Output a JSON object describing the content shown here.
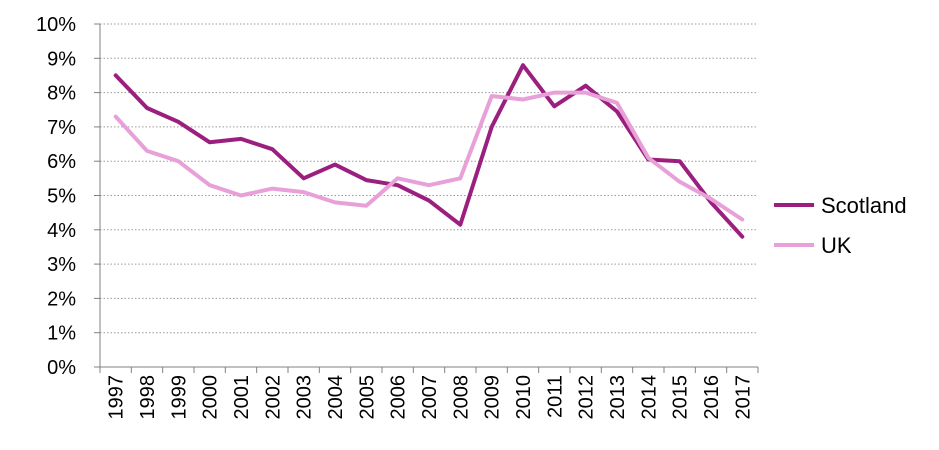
{
  "chart_data": {
    "type": "line",
    "title": "",
    "xlabel": "",
    "ylabel": "",
    "x": [
      "1997",
      "1998",
      "1999",
      "2000",
      "2001",
      "2002",
      "2003",
      "2004",
      "2005",
      "2006",
      "2007",
      "2008",
      "2009",
      "2010",
      "2011",
      "2012",
      "2013",
      "2014",
      "2015",
      "2016",
      "2017"
    ],
    "ylim": [
      0,
      10
    ],
    "yticks": [
      0,
      1,
      2,
      3,
      4,
      5,
      6,
      7,
      8,
      9,
      10
    ],
    "ytick_labels": [
      "0%",
      "1%",
      "2%",
      "3%",
      "4%",
      "5%",
      "6%",
      "7%",
      "8%",
      "9%",
      "10%"
    ],
    "y_unit": "%",
    "grid": "horizontal-dotted",
    "legend_position": "right",
    "series": [
      {
        "name": "Scotland",
        "color": "#9b1f7e",
        "values": [
          8.5,
          7.55,
          7.15,
          6.55,
          6.65,
          6.35,
          5.5,
          5.9,
          5.45,
          5.3,
          4.85,
          4.15,
          7.0,
          8.8,
          7.6,
          8.2,
          7.45,
          6.05,
          6.0,
          4.8,
          3.8
        ]
      },
      {
        "name": "UK",
        "color": "#e8a0d8",
        "values": [
          7.3,
          6.3,
          6.0,
          5.3,
          5.0,
          5.2,
          5.1,
          4.8,
          4.7,
          5.5,
          5.3,
          5.5,
          7.9,
          7.8,
          8.0,
          8.0,
          7.7,
          6.1,
          5.4,
          4.9,
          4.3
        ]
      }
    ]
  }
}
